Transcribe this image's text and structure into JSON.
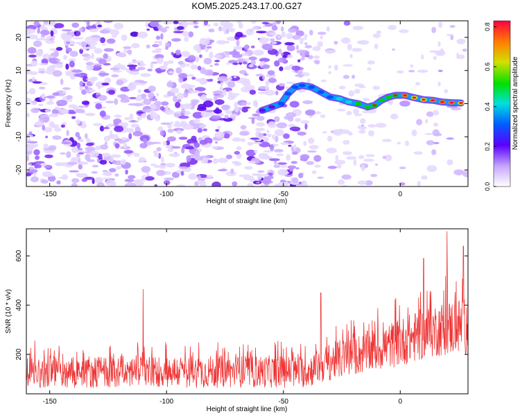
{
  "title": "KOM5.2025.243.17.00.G27",
  "chart_data": [
    {
      "type": "heatmap",
      "xlabel": "Height of straight line (km)",
      "ylabel": "Frequency (Hz)",
      "xlim": [
        -160,
        29
      ],
      "ylim": [
        -25,
        25
      ],
      "xticks": [
        -150,
        -100,
        -50,
        0
      ],
      "yticks": [
        -20,
        -10,
        0,
        10,
        20
      ],
      "colorbar": {
        "label": "Normalized spectral amplitude",
        "range": [
          0.0,
          0.83
        ],
        "ticks": [
          "0.0",
          "0.2",
          "0.4",
          "0.6",
          "0.8"
        ],
        "tick_values": [
          0.0,
          0.2,
          0.4,
          0.6,
          0.8
        ]
      },
      "ridge": {
        "x": [
          -59,
          -55,
          -51,
          -48,
          -45,
          -42,
          -38,
          -34,
          -30,
          -26,
          -22,
          -18,
          -14,
          -11,
          -8,
          -5,
          -2,
          2,
          6,
          10,
          14,
          18,
          22,
          26
        ],
        "y": [
          -2,
          -1,
          0,
          3,
          5,
          5.5,
          5,
          3.5,
          2,
          1.5,
          0.5,
          0,
          -1,
          -0.5,
          1,
          2,
          2.5,
          2.5,
          1.8,
          1.2,
          1,
          0.5,
          0.3,
          0.2
        ],
        "amplitude": [
          0.22,
          0.24,
          0.26,
          0.28,
          0.3,
          0.3,
          0.32,
          0.36,
          0.38,
          0.45,
          0.5,
          0.55,
          0.6,
          0.62,
          0.58,
          0.55,
          0.62,
          0.8,
          0.7,
          0.75,
          0.82,
          0.78,
          0.8,
          0.72
        ]
      }
    },
    {
      "type": "line",
      "xlabel": "Height of straight line (km)",
      "ylabel": "SNR (10 * v/v)",
      "xlim": [
        -160,
        29
      ],
      "ylim": [
        40,
        710
      ],
      "xticks": [
        -150,
        -100,
        -50,
        0
      ],
      "yticks": [
        200,
        400,
        600
      ],
      "color": "#ee3333",
      "trend": {
        "x": [
          -160,
          -40,
          -30,
          -10,
          0,
          15,
          29
        ],
        "mean": [
          130,
          130,
          170,
          220,
          250,
          300,
          320
        ],
        "spread": [
          60,
          60,
          70,
          80,
          90,
          100,
          110
        ]
      },
      "notable_peaks": [
        {
          "x": -110,
          "y": 465
        },
        {
          "x": -34,
          "y": 450
        },
        {
          "x": 10,
          "y": 590
        },
        {
          "x": 20,
          "y": 700
        },
        {
          "x": 27,
          "y": 640
        }
      ],
      "n_points": 1200
    }
  ]
}
